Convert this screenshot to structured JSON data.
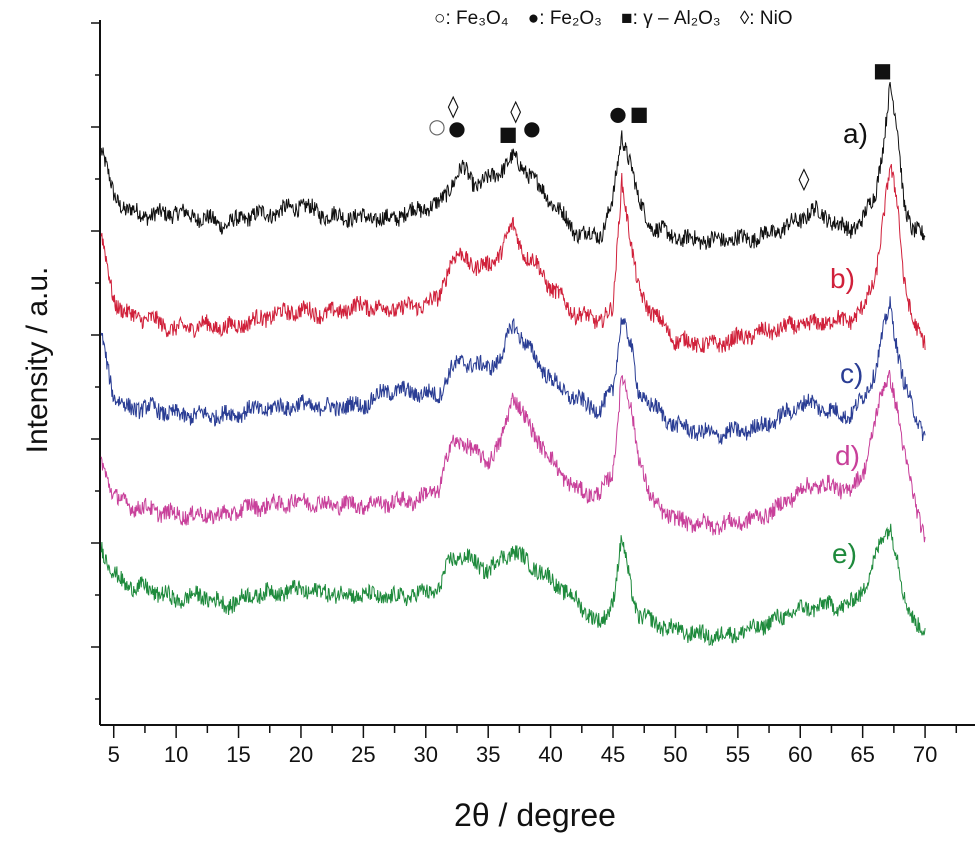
{
  "chart_data": {
    "type": "line",
    "title": "",
    "xlabel": "2θ / degree",
    "ylabel": "Intensity / a.u.",
    "xlim": [
      3.9,
      74
    ],
    "ylim": [
      0,
      6.78
    ],
    "x_ticks": [
      5,
      10,
      15,
      20,
      25,
      30,
      35,
      40,
      45,
      50,
      55,
      60,
      65,
      70
    ],
    "y_tick_labels": false,
    "grid": false,
    "legend": {
      "placement": "top",
      "entries": [
        {
          "symbol": "○",
          "text": ": Fe₃O₄"
        },
        {
          "symbol": "●",
          "text": ": Fe₂O₃"
        },
        {
          "symbol": "■",
          "text": ": γ – Al₂O₃"
        },
        {
          "symbol": "◊",
          "text": ": NiO"
        }
      ]
    },
    "x": [
      4,
      5,
      6,
      8,
      10,
      12,
      14,
      16,
      18,
      20,
      22,
      25,
      27,
      29,
      31,
      32,
      33,
      34,
      35,
      36,
      37,
      38,
      39,
      40,
      41,
      42,
      44,
      45,
      45.7,
      46.5,
      47,
      48,
      50,
      53,
      56,
      58,
      60,
      61,
      62,
      63,
      64,
      65,
      66,
      66.7,
      67.2,
      67.8,
      68.3,
      69,
      70
    ],
    "series": [
      {
        "name": "a)",
        "color": "#111111",
        "values": [
          5.53,
          5.1,
          4.95,
          4.9,
          4.93,
          4.88,
          4.81,
          4.9,
          4.93,
          5.0,
          4.9,
          4.88,
          4.86,
          4.95,
          5.0,
          5.19,
          5.36,
          5.19,
          5.24,
          5.34,
          5.45,
          5.34,
          5.19,
          5.05,
          4.9,
          4.74,
          4.71,
          5.05,
          5.67,
          5.38,
          5.05,
          4.81,
          4.68,
          4.66,
          4.68,
          4.74,
          4.86,
          4.95,
          4.9,
          4.81,
          4.76,
          4.86,
          5.1,
          5.63,
          6.13,
          5.72,
          5.05,
          4.74,
          4.71
        ]
      },
      {
        "name": "b)",
        "color": "#d0203a",
        "values": [
          4.71,
          4.09,
          3.95,
          3.9,
          3.8,
          3.85,
          3.82,
          3.88,
          3.95,
          3.99,
          3.95,
          4.04,
          4.0,
          4.02,
          4.09,
          4.47,
          4.52,
          4.4,
          4.42,
          4.55,
          4.81,
          4.5,
          4.42,
          4.2,
          4.09,
          3.95,
          3.89,
          3.99,
          5.26,
          4.57,
          4.2,
          3.99,
          3.7,
          3.65,
          3.75,
          3.8,
          3.85,
          3.85,
          3.88,
          3.89,
          3.9,
          3.99,
          4.3,
          4.9,
          5.36,
          5.05,
          4.3,
          3.85,
          3.7
        ]
      },
      {
        "name": "c)",
        "color": "#2a3d94",
        "values": [
          3.75,
          3.17,
          3.05,
          3.05,
          2.98,
          2.98,
          2.98,
          3.03,
          3.05,
          3.08,
          3.05,
          3.08,
          3.22,
          3.2,
          3.17,
          3.41,
          3.51,
          3.45,
          3.45,
          3.51,
          3.88,
          3.65,
          3.5,
          3.32,
          3.22,
          3.13,
          3.03,
          3.22,
          3.94,
          3.6,
          3.22,
          3.08,
          2.88,
          2.79,
          2.84,
          2.93,
          3.08,
          3.1,
          3.03,
          3.0,
          2.98,
          3.13,
          3.41,
          3.8,
          4.04,
          3.61,
          3.3,
          3.03,
          2.79
        ]
      },
      {
        "name": "d)",
        "color": "#c8409a",
        "values": [
          2.55,
          2.21,
          2.12,
          2.07,
          2.02,
          2.02,
          2.02,
          2.1,
          2.12,
          2.16,
          2.12,
          2.12,
          2.14,
          2.16,
          2.26,
          2.69,
          2.74,
          2.6,
          2.55,
          2.7,
          3.19,
          2.93,
          2.75,
          2.55,
          2.4,
          2.26,
          2.21,
          2.45,
          3.37,
          3.0,
          2.64,
          2.16,
          1.97,
          1.92,
          1.97,
          2.07,
          2.26,
          2.3,
          2.31,
          2.28,
          2.26,
          2.4,
          2.93,
          3.25,
          3.37,
          3.03,
          2.6,
          2.26,
          1.78
        ]
      },
      {
        "name": "e)",
        "color": "#1e8a3c",
        "values": [
          1.73,
          1.44,
          1.35,
          1.3,
          1.2,
          1.25,
          1.15,
          1.25,
          1.28,
          1.3,
          1.27,
          1.25,
          1.22,
          1.25,
          1.3,
          1.59,
          1.63,
          1.55,
          1.49,
          1.6,
          1.68,
          1.58,
          1.49,
          1.4,
          1.3,
          1.2,
          0.96,
          1.2,
          1.78,
          1.3,
          1.06,
          1.0,
          0.91,
          0.85,
          0.91,
          1.01,
          1.11,
          1.13,
          1.15,
          1.15,
          1.15,
          1.3,
          1.59,
          1.85,
          1.92,
          1.59,
          1.2,
          1.06,
          0.87
        ]
      }
    ],
    "annotations": [
      {
        "symbol": "○",
        "phase": "Fe₃O₄",
        "x": 30.9,
        "y": 5.76
      },
      {
        "symbol": "●",
        "phase": "Fe₂O₃",
        "x": 32.5,
        "y": 5.74
      },
      {
        "symbol": "◊",
        "phase": "NiO",
        "x": 32.2,
        "y": 5.95
      },
      {
        "symbol": "◊",
        "phase": "NiO",
        "x": 37.2,
        "y": 5.9
      },
      {
        "symbol": "■",
        "phase": "γ – Al₂O₃",
        "x": 36.6,
        "y": 5.69
      },
      {
        "symbol": "●",
        "phase": "Fe₂O₃",
        "x": 38.5,
        "y": 5.74
      },
      {
        "symbol": "●",
        "phase": "Fe₂O₃",
        "x": 45.4,
        "y": 5.88
      },
      {
        "symbol": "■",
        "phase": "γ – Al₂O₃",
        "x": 47.1,
        "y": 5.88
      },
      {
        "symbol": "◊",
        "phase": "NiO",
        "x": 60.3,
        "y": 5.25
      },
      {
        "symbol": "■",
        "phase": "γ – Al₂O₃",
        "x": 66.6,
        "y": 6.3
      }
    ]
  }
}
